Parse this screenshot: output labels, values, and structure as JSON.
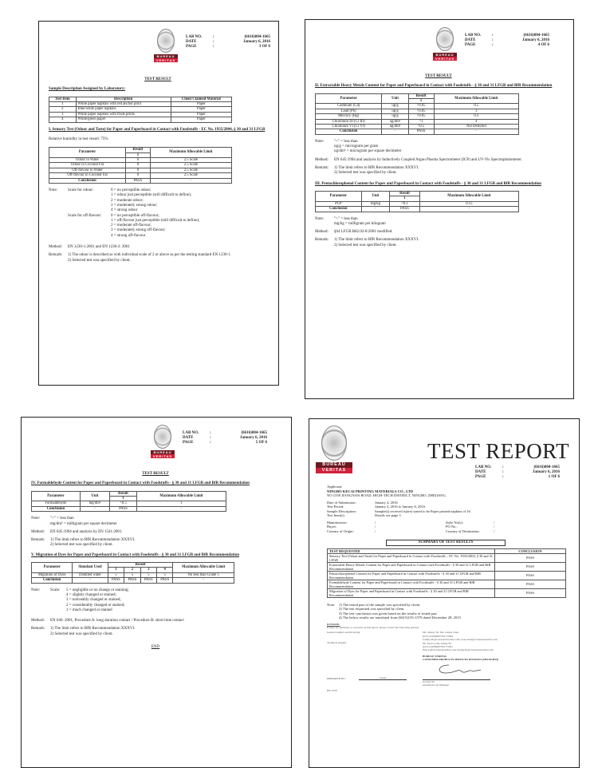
{
  "header": {
    "lab_no_label": "LAB NO.",
    "date_label": "DATE",
    "page_label": "PAGE",
    "colon": ":",
    "lab_no": "(6616)004-1665",
    "date": "January 6, 2016",
    "logo_top": "BUREAU",
    "logo_bottom": "VERITAS"
  },
  "test_result_title": "TEST RESULT",
  "p3": {
    "page": "3  OF  6",
    "sample_heading": "Sample Description Assigned by Laboratory:",
    "sample_table": {
      "headers": [
        {
          "label": "Test Item"
        },
        {
          "label": "Description"
        },
        {
          "label": "Client Claimed Material"
        }
      ],
      "rows": [
        [
          "1",
          "White paper napkins with red anchor print",
          "Paper"
        ],
        [
          "2",
          "Blue/white paper napkins",
          "Paper"
        ],
        [
          "3",
          "White paper napkins with fruits prints",
          "Paper"
        ],
        [
          "4",
          "White/green paper",
          "Paper"
        ]
      ]
    },
    "section_heading": "I. Sensory Test (Odour and Taste) for Paper and Paperboard in Contact with Foodstuffs - EC No. 1935/2004, § 30 and 31 LFGB",
    "humidity": "Relative humidity in test vessel: 75%",
    "table": {
      "headers": [
        {
          "label": "Parameter"
        },
        {
          "label": "Result",
          "sub": [
            "1"
          ]
        },
        {
          "label": "Maximum Allowable Limit"
        }
      ],
      "rows": [
        [
          "Odour in Water",
          "0",
          "2.5 Scale"
        ],
        [
          "Odour in Coconut Fat",
          "0",
          "2.5 Scale"
        ],
        [
          "Off-flavour in Water",
          "0",
          "2.5 Scale"
        ],
        [
          "Off-flavour in Coconut Fat",
          "0",
          "2.5 Scale"
        ],
        [
          "Conclusion",
          "PASS",
          "-"
        ]
      ]
    },
    "note_label": "Note:",
    "odour_label": "Scale for odour:",
    "odour": [
      "0 = no perceptible odour;",
      "1 = odour just perceptible (still difficult to define);",
      "2 = moderate odour;",
      "3 = moderately strong odour;",
      "4 = strong odour"
    ],
    "flavour_label": "Scale for off-flavour:",
    "flavour": [
      "0 = no perceptible off-flavour;",
      "1 = off-flavour just perceptible (still difficult to define);",
      "2 = moderate off-flavour;",
      "3 = moderately strong off-flavour;",
      "4 = strong off-flavour"
    ],
    "method_label": "Method:",
    "method": "EN 1230-1:2001 and EN 1230-2: 2001",
    "remark_label": "Remark:",
    "remarks": [
      "1) The odour is described as with individual scale of 2 or above as per the testing standard EN 1230-1.",
      "2) Selected test was specified by client."
    ]
  },
  "p4": {
    "page": "4  OF  6",
    "section2_heading": "II. Extractable Heavy Metals Content for Paper and Paperboard in Contact with Foodstuffs - § 30 and 31 LFGB and BfR Recommendation",
    "table2": {
      "headers": [
        {
          "label": "Parameter"
        },
        {
          "label": "Unit"
        },
        {
          "label": "Result",
          "sub": [
            "1"
          ]
        },
        {
          "label": "Maximum Allowable Limit"
        }
      ],
      "rows": [
        [
          "Cadmium (Cd)",
          "ug/g",
          "<0.05",
          "0.5"
        ],
        [
          "Lead (Pb)",
          "ug/g",
          "<0.05",
          "3"
        ],
        [
          "Mercury (Hg)",
          "ug/g",
          "<0.05",
          "0.3"
        ],
        [
          "Chromium III (Cr III)",
          "ug/dm²",
          "<1",
          "4"
        ],
        [
          "Chromium VI (Cr VI)",
          "ug/dm²",
          "<0.5",
          "Not Detected"
        ],
        [
          "Conclusion",
          "-",
          "PASS",
          "-"
        ]
      ]
    },
    "note_label": "Note:",
    "notes2": [
      "\"<\" = less than",
      "ug/g = microgram per gram",
      "ug/dm² = microgram per square decimeter"
    ],
    "method_label": "Method:",
    "method2": "EN 645:1994 and analysis by Inductively Coupled Argon Plasma Spectrometer (ICP) and UV-Vis Spectrophotometer.",
    "remark_label": "Remark:",
    "remarks2": [
      "1) The limit refers to BfR Recommendation XXXVI.",
      "2) Selected test was specified by client."
    ],
    "section3_heading": "III. Pentachlorophenol Content for Paper and Paperboard in Contact with Foodstuffs - § 30 and 31 LFGB and BfR Recommendation",
    "table3": {
      "headers": [
        {
          "label": "Parameter"
        },
        {
          "label": "Unit"
        },
        {
          "label": "Result",
          "sub": [
            "1"
          ]
        },
        {
          "label": "Maximum Allowable Limit"
        }
      ],
      "rows": [
        [
          "PCP",
          "mg/kg",
          "<0.1",
          "0.15"
        ],
        [
          "Conclusion",
          "-",
          "PASS",
          "-"
        ]
      ]
    },
    "notes3": [
      "\"<\" = less than",
      "mg/kg = milligram per kilogram"
    ],
    "method3": "§64 LFGB B82.02-8:2001 modified.",
    "remarks3": [
      "1) The limit refers to BfR Recommendation XXXVI.",
      "2) Selected test was specified by client."
    ]
  },
  "p5": {
    "page": "5  OF  6",
    "section4_heading": "IV. Formaldehyde Content for Paper and Paperboard in Contact with Foodstuffs - § 30 and 31 LFGB and BfR Recommendation",
    "table4": {
      "headers": [
        {
          "label": "Parameter"
        },
        {
          "label": "Unit"
        },
        {
          "label": "Result",
          "sub": [
            "1"
          ]
        },
        {
          "label": "Maximum Allowable Limit"
        }
      ],
      "rows": [
        [
          "Formaldehyde",
          "mg/dm²",
          "<0.5",
          "1"
        ],
        [
          "Conclusion",
          "-",
          "PASS",
          "-"
        ]
      ]
    },
    "note_label": "Note:",
    "notes4": [
      "\"<\" = less than",
      "mg/dm² = milligram per square decimeter"
    ],
    "method_label": "Method:",
    "method4": "EN 645:1994 and analysis by EN 1541:2001.",
    "remark_label": "Remark:",
    "remarks4": [
      "1) The limit refers to BfR Recommendation XXXVI.",
      "2) Selected test was specified by client."
    ],
    "section5_heading": "V. Migration of Dyes for Paper and Paperboard in Contact with Foodstuffs - § 30 and 31 LFGB and BfR Recommendation",
    "table5": {
      "headers": [
        {
          "label": "Parameter"
        },
        {
          "label": "Simulant Used"
        },
        {
          "label": "Result",
          "sub": [
            "1",
            "2",
            "3",
            "4"
          ]
        },
        {
          "label": "Maximum Allowable Limit"
        }
      ],
      "rows": [
        [
          "Migration of Dyes",
          "Distilled water",
          "5",
          "5",
          "5",
          "5",
          "No less than Grade 5"
        ],
        [
          "Conclusion",
          "-",
          "PASS",
          "PASS",
          "PASS",
          "PASS",
          "-"
        ]
      ]
    },
    "scale_label": "Scale:",
    "scale": [
      "5 = negligible or no change or staining;",
      "4 = slightly changed or stained;",
      "3 = noticeably changed or stained;",
      "2 = considerably changed or stained;",
      "1 = much changed or stained"
    ],
    "method5": "EN 646: 2001, Procedure A: long duration contact / Procedure B: short time contact",
    "remarks5": [
      "1) The limit refers to BfR Recommendation XXXVI.",
      "2) Selected test was specified by client."
    ],
    "end": "END"
  },
  "p1": {
    "title": "TEST REPORT",
    "page": "1  OF  6",
    "applicant_label": "Applicant:",
    "applicant_name": "NINGBO KECAI PRINTING MATERIALS CO., LTD",
    "applicant_address": "NO.1558 JIANGNAN ROAD, HIGH-TECH DISTRICT, NINGBO, ZHEJIANG",
    "fields": [
      [
        "Date of Submission:",
        "January 4, 2016"
      ],
      [
        "Test Period:",
        "January 4, 2016 to January 6, 2016"
      ],
      [
        "Sample Description:",
        "Sample(s) received is(are) stated to be Paper printed napkins of 16"
      ],
      [
        "Test Item(s):",
        "Details see page 3"
      ]
    ],
    "fields2": [
      [
        "Manufacturer:",
        "/",
        "Style No(s):",
        "/"
      ],
      [
        "Buyer:",
        "/",
        "PO No.:",
        "/"
      ],
      [
        "Country of Origin:",
        "/",
        "Country of Destination:",
        "/"
      ]
    ],
    "summary_title": "SUMMARY OF TEST RESULTS",
    "summary": {
      "headers": [
        "TEST REQUESTED",
        "CONCLUSION"
      ],
      "rows": [
        [
          "Sensory Test (Odour and Taste) for Paper and Paperboard in Contact with Foodstuffs – EC No. 1935/2004, § 30 and 31 LFGB",
          "PASS"
        ],
        [
          "Extractable Heavy Metals Content for Paper and Paperboard in Contact with Foodstuffs - § 30 and 31 LFGB and BfR Recommendation",
          "PASS"
        ],
        [
          "Pentachlorophenol Content for Paper and Paperboard in Contact with Foodstuffs - § 30 and 31 LFGB and BfR Recommendation",
          "PASS"
        ],
        [
          "Formaldehyde Content for Paper and Paperboard in Contact with Foodstuffs - § 30 and 31 LFGB and BfR Recommendation",
          "PASS"
        ],
        [
          "Migration of Dyes for Paper and Paperboard in Contact with Foodstuffs - § 30 and 31 LFGB and BfR Recommendation",
          "PASS"
        ]
      ]
    },
    "note_label": "Note:",
    "notes": [
      "1) The tested part of the sample was specified by client.",
      "2) The test requested was specified by client.",
      "3) The test conclusion was given based on the results of tested part.",
      "4) The below results are translated from (6615)155-1579 dated December 28, 2015."
    ],
    "remark_heading": "REMARK:",
    "remark_text": "If there are questions or concerns on this report, please contact the following persons:",
    "general_label": "General enquiry and invoicing",
    "technical_label": "Technical enquiry",
    "contacts": [
      "Mr. Johnny Yu/ Ms. Joanna Chen",
      "(021) 24108000*5017/5049",
      "Johnny.Yu@cn.bureauveritas.com/ Joan.chen@cn.bureauveritas.com",
      "Mr. Paul Li/ Ms. Kathy Fu",
      "(021) 24108000*6017/5041",
      "Paul.Li@cn.bureauveritas.com/ Kathy.Fu@cn.bureauveritas.com"
    ],
    "org1": "BUREAU VERITAS",
    "org2": "CONSUMER PRODUCTS SERVICES DIVISION (SHANGHAI)",
    "prepared_label": "PREPARED BY :",
    "prepared_name": "Candy",
    "signer": "Gordon Yu",
    "signer_title": "Analytical Lab Manager",
    "footer_code": "RW 2016"
  }
}
